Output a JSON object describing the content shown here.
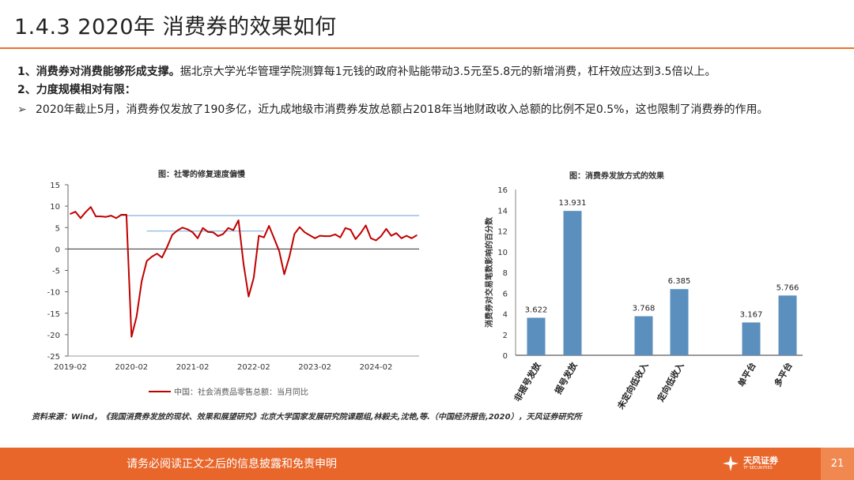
{
  "header": {
    "title": "1.4.3 2020年 消费券的效果如何"
  },
  "body": {
    "p1_bold": "1、消费券对消费能够形成支撑。",
    "p1_text": "据北京大学光华管理学院测算每1元钱的政府补贴能带动3.5元至5.8元的新增消费，杠杆效应达到3.5倍以上。",
    "p2_bold": "2、力度规模相对有限：",
    "p3_arrow": "➢",
    "p3_text": "2020年截止5月，消费券仅发放了190多亿，近九成地级市消费券发放总额占2018年当地财政收入总额的比例不足0.5%，这也限制了消费券的作用。"
  },
  "chart_data": [
    {
      "type": "line",
      "title": "图：社零的修复速度偏慢",
      "xlabel": "",
      "ylabel": "",
      "ylim": [
        -25,
        15
      ],
      "yticks": [
        15,
        10,
        5,
        0,
        -5,
        -10,
        -15,
        -20,
        -25
      ],
      "xticks": [
        "2019-02",
        "2020-02",
        "2021-02",
        "2022-02",
        "2023-02",
        "2024-02"
      ],
      "series": [
        {
          "name": "中国：社会消费品零售总额：当月同比",
          "color": "#c00000",
          "x": [
            0,
            1,
            2,
            3,
            4,
            5,
            6,
            7,
            8,
            9,
            10,
            11,
            12,
            13,
            14,
            15,
            16,
            17,
            18,
            19,
            20,
            21,
            22,
            23,
            24,
            25,
            26,
            27,
            28,
            29,
            30,
            31,
            32,
            33,
            34,
            35,
            36,
            37,
            38,
            39,
            40,
            41,
            42,
            43,
            44,
            45,
            46,
            47,
            48,
            49,
            50,
            51,
            52,
            53,
            54,
            55,
            56,
            57,
            58,
            59,
            60,
            61,
            62,
            63,
            64,
            65,
            66,
            67,
            68
          ],
          "values": [
            8.2,
            8.7,
            7.2,
            8.6,
            9.8,
            7.6,
            7.6,
            7.5,
            7.8,
            7.2,
            8.0,
            8.0,
            -20.5,
            -15.8,
            -7.5,
            -2.8,
            -1.8,
            -1.1,
            -2.0,
            0.5,
            3.3,
            4.3,
            5.0,
            4.6,
            3.9,
            2.5,
            4.9,
            4.0,
            3.9,
            3.0,
            3.5,
            4.9,
            4.4,
            6.7,
            -3.5,
            -11.1,
            -6.7,
            3.1,
            2.7,
            5.4,
            2.5,
            -0.5,
            -5.9,
            -1.8,
            3.5,
            5.1,
            3.9,
            3.2,
            2.5,
            3.1,
            3.0,
            3.0,
            3.4,
            2.7,
            4.9,
            4.5,
            2.3,
            3.7,
            5.5,
            2.5,
            2.0,
            3.0,
            4.7,
            3.1,
            3.7,
            2.5,
            3.1,
            2.5,
            3.2
          ]
        }
      ],
      "reference_lines": [
        7.8,
        4.2
      ]
    },
    {
      "type": "bar",
      "title": "图：消费券发放方式的效果",
      "ylabel": "消费券对交易笔数影响的百分数",
      "ylim": [
        0,
        16
      ],
      "yticks": [
        0,
        2,
        4,
        6,
        8,
        10,
        12,
        14,
        16
      ],
      "categories": [
        "非摇号发放",
        "摇号发放",
        "未定向低收入",
        "定向低收入",
        "单平台",
        "多平台"
      ],
      "values": [
        3.622,
        13.931,
        3.768,
        6.385,
        3.167,
        5.766
      ],
      "labels": [
        "3.622",
        "13.931",
        "3.768",
        "6.385",
        "3.167",
        "5.766"
      ],
      "color": "#5b8fbe"
    }
  ],
  "source": "资料来源：Wind，《我国消费券发放的现状、效果和展望研究》北京大学国家发展研究院课题组,林毅夫,沈艳,等.（中国经济报告,2020），天风证券研究所",
  "footer": {
    "disclaimer": "请务必阅读正文之后的信息披露和免责申明",
    "logo_name": "天风证券",
    "logo_sub": "TF SECURITIES",
    "page_number": "21"
  },
  "colors": {
    "accent": "#e8662a",
    "line": "#c00000",
    "bar": "#5b8fbe",
    "ref": "#8fb8e0"
  },
  "icons": {
    "logo": "tf-securities-logo-icon"
  }
}
